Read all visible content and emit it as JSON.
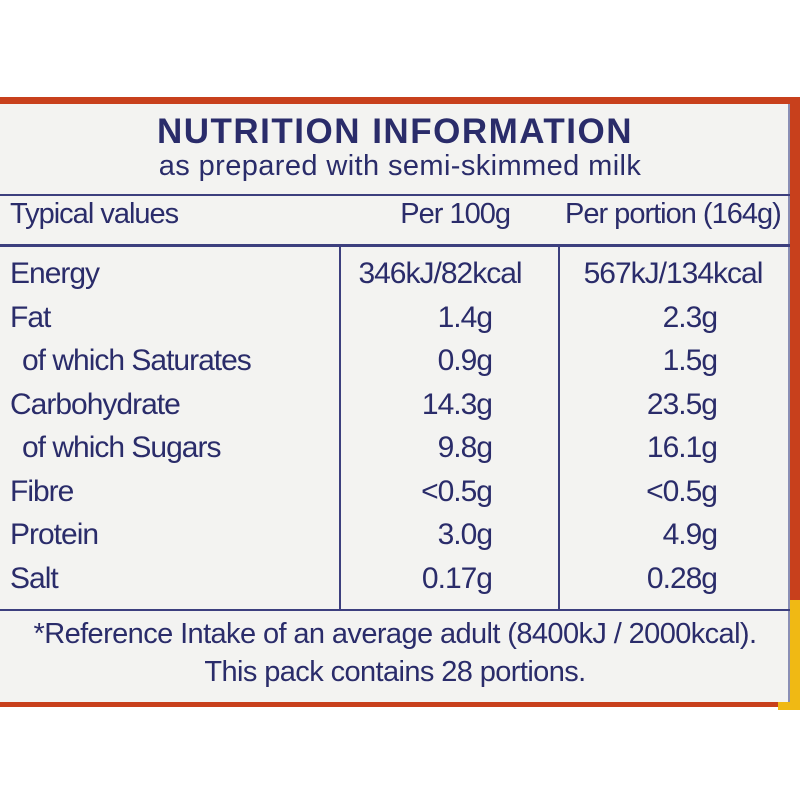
{
  "label": {
    "title": "NUTRITION INFORMATION",
    "subtitle": "as prepared with semi-skimmed milk",
    "headers": [
      "Typical values",
      "Per 100g",
      "Per portion (164g)"
    ],
    "rows": [
      {
        "name": "Energy",
        "per100": "346kJ/82kcal",
        "perPortion": "567kJ/134kcal",
        "indent": false
      },
      {
        "name": "Fat",
        "per100": "1.4g",
        "perPortion": "2.3g",
        "indent": false
      },
      {
        "name": "of which Saturates",
        "per100": "0.9g",
        "perPortion": "1.5g",
        "indent": true
      },
      {
        "name": "Carbohydrate",
        "per100": "14.3g",
        "perPortion": "23.5g",
        "indent": false
      },
      {
        "name": "of which Sugars",
        "per100": "9.8g",
        "perPortion": "16.1g",
        "indent": true
      },
      {
        "name": "Fibre",
        "per100": "<0.5g",
        "perPortion": "<0.5g",
        "indent": false
      },
      {
        "name": "Protein",
        "per100": "3.0g",
        "perPortion": "4.9g",
        "indent": false
      },
      {
        "name": "Salt",
        "per100": "0.17g",
        "perPortion": "0.28g",
        "indent": false
      }
    ],
    "footnote_line1": "*Reference Intake of an average adult (8400kJ / 2000kcal).",
    "footnote_line2": "This pack contains 28 portions."
  },
  "colors": {
    "text": "#2a2c6a",
    "panel": "#f3f3f1",
    "border": "#c8401c"
  }
}
